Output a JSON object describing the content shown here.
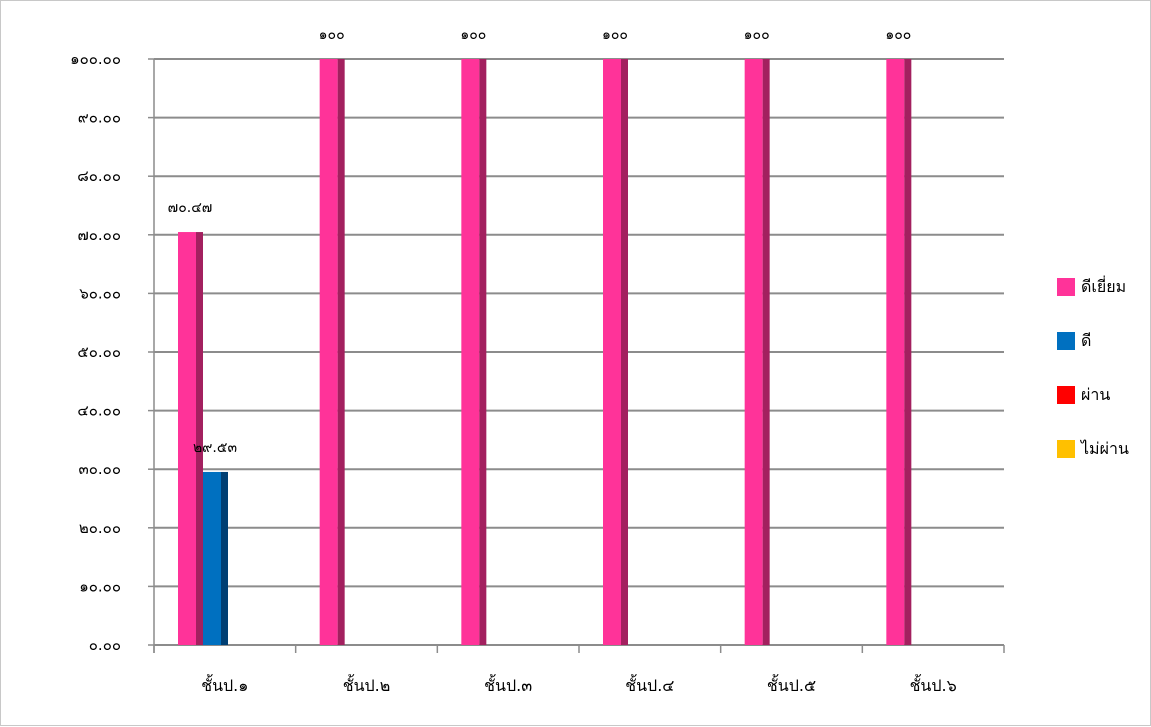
{
  "chart_data": {
    "type": "bar",
    "title": "",
    "xlabel": "",
    "ylabel": "",
    "ylim": [
      0,
      100
    ],
    "y_step": 10,
    "y_tick_labels": [
      "๐.๐๐",
      "๑๐.๐๐",
      "๒๐.๐๐",
      "๓๐.๐๐",
      "๔๐.๐๐",
      "๕๐.๐๐",
      "๖๐.๐๐",
      "๗๐.๐๐",
      "๘๐.๐๐",
      "๙๐.๐๐",
      "๑๐๐.๐๐"
    ],
    "grid": true,
    "legend_position": "right",
    "categories": [
      "ชั้นป.๑",
      "ชั้นป.๒",
      "ชั้นป.๓",
      "ชั้นป.๔",
      "ชั้นป.๕",
      "ชั้นป.๖"
    ],
    "series": [
      {
        "name": "ดีเยี่ยม",
        "color": "#ff3399",
        "side_color": "#a3205f",
        "values": [
          70.47,
          100,
          100,
          100,
          100,
          100
        ],
        "labels": [
          "๗๐.๔๗",
          "๑๐๐",
          "๑๐๐",
          "๑๐๐",
          "๑๐๐",
          "๑๐๐"
        ]
      },
      {
        "name": "ดี",
        "color": "#0070c0",
        "side_color": "#003f73",
        "values": [
          29.53,
          0,
          0,
          0,
          0,
          0
        ],
        "labels": [
          "๒๙.๕๓",
          "",
          "",
          "",
          "",
          ""
        ]
      },
      {
        "name": "ผ่าน",
        "color": "#ff0000",
        "side_color": "#990000",
        "values": [
          0,
          0,
          0,
          0,
          0,
          0
        ],
        "labels": [
          "",
          "",
          "",
          "",
          "",
          ""
        ]
      },
      {
        "name": "ไม่ผ่าน",
        "color": "#ffc000",
        "side_color": "#997300",
        "values": [
          0,
          0,
          0,
          0,
          0,
          0
        ],
        "labels": [
          "",
          "",
          "",
          "",
          "",
          ""
        ]
      }
    ]
  }
}
